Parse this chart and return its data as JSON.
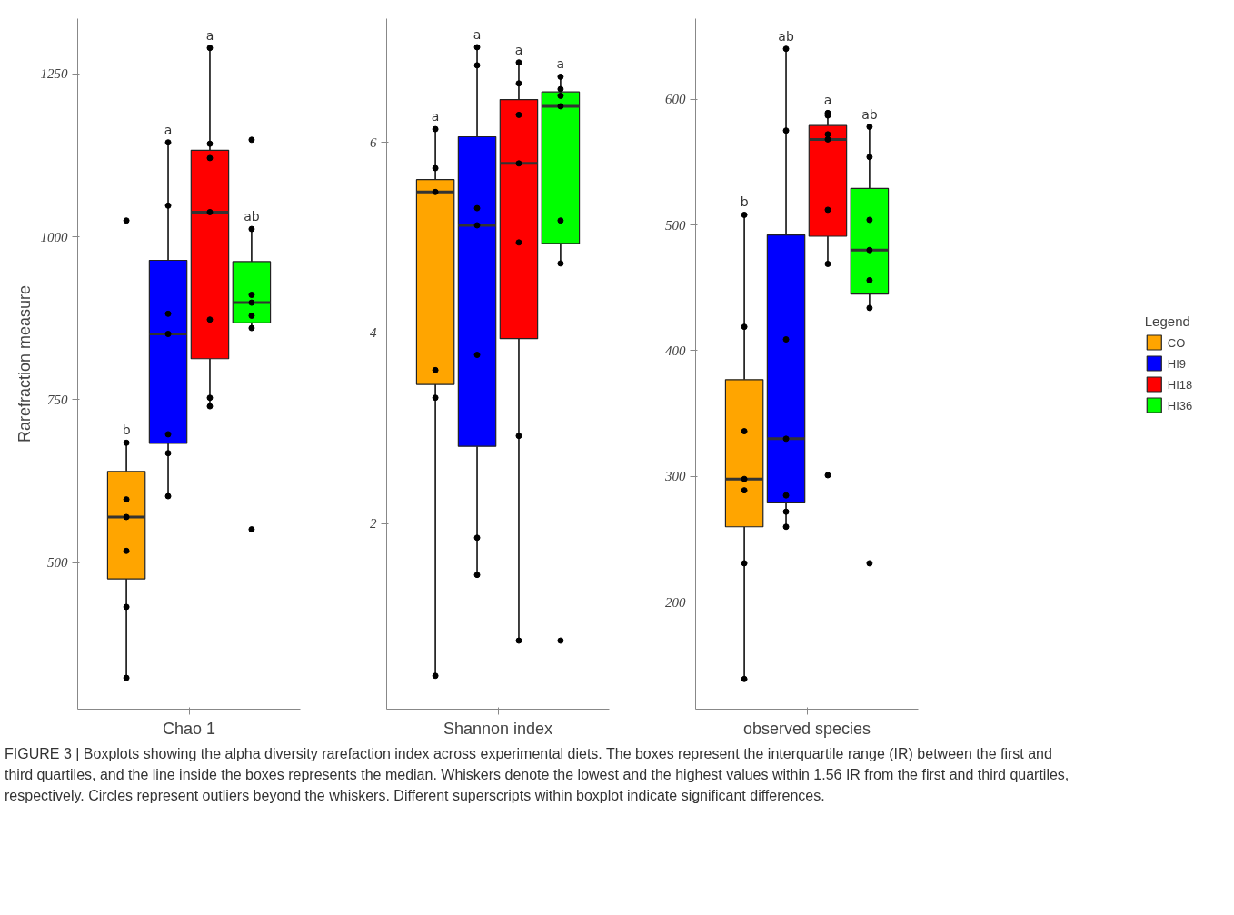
{
  "chart_data": [
    {
      "type": "box",
      "xlabel": "Chao 1",
      "ylabel": "Rarefraction measure",
      "categories": [
        null
      ],
      "ylim": [
        275,
        1335
      ],
      "yticks": [
        500,
        750,
        1000,
        1250
      ],
      "tick_labels": "y",
      "grid": false,
      "legend": false,
      "series": [
        {
          "color": "#ffa500",
          "boxes": [
            {
              "low": 323,
              "q1": 475,
              "median": 570,
              "q3": 640,
              "high": 684,
              "outliers": [
                684,
                597,
                570,
                518,
                432,
                323,
                1025
              ]
            }
          ]
        },
        {
          "color": "#0000ff",
          "boxes": [
            {
              "low": 602,
              "q1": 683,
              "median": 851,
              "q3": 964,
              "high": 1145,
              "outliers": [
                1145,
                1048,
                882,
                851,
                697,
                668,
                602
              ]
            }
          ]
        },
        {
          "color": "#ff0000",
          "boxes": [
            {
              "low": 740,
              "q1": 813,
              "median": 1038,
              "q3": 1133,
              "high": 1290,
              "outliers": [
                1290,
                1143,
                1121,
                1038,
                873,
                753,
                740
              ]
            }
          ]
        },
        {
          "color": "#00ff00",
          "boxes": [
            {
              "low": 860,
              "q1": 868,
              "median": 899,
              "q3": 962,
              "high": 1012,
              "outliers": [
                1149,
                1012,
                911,
                899,
                879,
                860,
                551
              ]
            }
          ]
        }
      ],
      "annotations": [
        "b",
        "a",
        "a",
        "ab",
        "FIGURE 3 | Boxplots showing the alpha diversity rarefaction index across experimental diets. The boxes represent the interquartile range (IR) between the first and third quartiles, and the line inside the boxes represents the median. Whiskers denote the lowest and the highest values within 1.56 IR from the first and third quartiles, respectively. Circles represent outliers beyond the whiskers. Different superscripts within boxplot indicate significant differences."
      ]
    },
    {
      "type": "box",
      "xlabel": "Shannon index",
      "categories": [
        null
      ],
      "ylim": [
        0.05,
        7.3
      ],
      "yticks": [
        2,
        4,
        6
      ],
      "tick_labels": "y",
      "grid": false,
      "legend": false,
      "series": [
        {
          "color": "#ffa500",
          "boxes": [
            {
              "low": 0.4,
              "q1": 3.46,
              "median": 5.48,
              "q3": 5.61,
              "high": 6.14,
              "outliers": [
                6.14,
                5.73,
                5.48,
                3.61,
                3.32,
                0.4
              ]
            }
          ]
        },
        {
          "color": "#0000ff",
          "boxes": [
            {
              "low": 1.46,
              "q1": 2.81,
              "median": 5.13,
              "q3": 6.06,
              "high": 7.0,
              "outliers": [
                7.0,
                6.81,
                5.31,
                5.13,
                3.77,
                1.85,
                1.46
              ]
            }
          ]
        },
        {
          "color": "#ff0000",
          "boxes": [
            {
              "low": 0.77,
              "q1": 3.94,
              "median": 5.78,
              "q3": 6.45,
              "high": 6.84,
              "outliers": [
                6.84,
                6.62,
                6.29,
                5.78,
                4.95,
                2.92,
                0.77
              ]
            }
          ]
        },
        {
          "color": "#00ff00",
          "boxes": [
            {
              "low": 4.73,
              "q1": 4.94,
              "median": 6.38,
              "q3": 6.53,
              "high": 6.69,
              "outliers": [
                6.69,
                6.56,
                6.49,
                6.38,
                5.18,
                4.73,
                0.77
              ]
            }
          ]
        }
      ],
      "annotations": [
        "a",
        "a",
        "a",
        "a"
      ]
    },
    {
      "type": "box",
      "xlabel": "observed species",
      "legend_title": "Legend",
      "categories": [
        null
      ],
      "ylim": [
        115,
        664
      ],
      "yticks": [
        200,
        300,
        400,
        500,
        600
      ],
      "tick_labels": "y",
      "grid": false,
      "legend": "right",
      "series": [
        {
          "name": "CO",
          "color": "#ffa500",
          "boxes": [
            {
              "low": 139,
              "q1": 260,
              "median": 298,
              "q3": 377,
              "high": 508,
              "outliers": [
                508,
                419,
                336,
                298,
                289,
                231,
                139
              ]
            }
          ]
        },
        {
          "name": "HI9",
          "color": "#0000ff",
          "boxes": [
            {
              "low": 260,
              "q1": 279,
              "median": 330,
              "q3": 492,
              "high": 640,
              "outliers": [
                640,
                575,
                409,
                330,
                285,
                272,
                260
              ]
            }
          ]
        },
        {
          "name": "HI18",
          "color": "#ff0000",
          "boxes": [
            {
              "low": 469,
              "q1": 491,
              "median": 568,
              "q3": 579,
              "high": 589,
              "outliers": [
                589,
                587,
                572,
                568,
                512,
                469,
                301
              ]
            }
          ]
        },
        {
          "name": "HI36",
          "color": "#00ff00",
          "boxes": [
            {
              "low": 434,
              "q1": 445,
              "median": 480,
              "q3": 529,
              "high": 578,
              "outliers": [
                578,
                554,
                504,
                480,
                456,
                434,
                231
              ]
            }
          ]
        }
      ],
      "annotations": [
        "b",
        "ab",
        "a",
        "ab"
      ]
    }
  ]
}
